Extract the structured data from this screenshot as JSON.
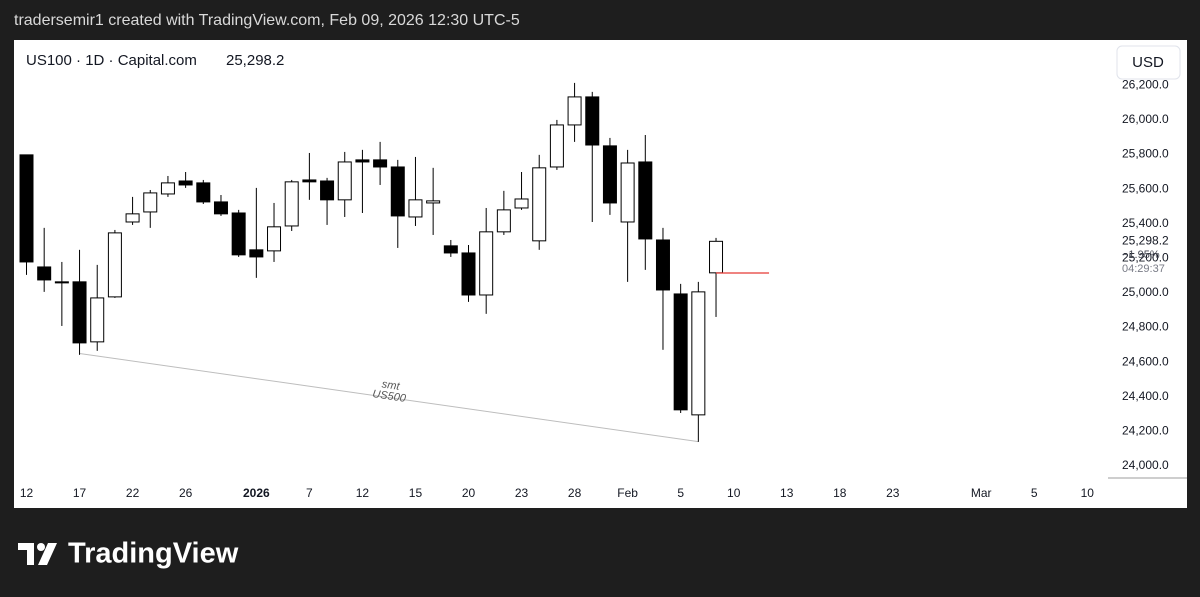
{
  "credit": "tradersemir1 created with TradingView.com, Feb 09, 2026 12:30 UTC-5",
  "brand": "TradingView",
  "chart_data": {
    "type": "candlestick",
    "title": "US100 · 1D · Capital.com",
    "last_price": {
      "value": 25298.2,
      "label": "25,298.2"
    },
    "change_label": "−1.95%",
    "countdown": "04:29:37",
    "currency": "USD",
    "categories": [
      "12",
      null,
      null,
      "17",
      null,
      null,
      "22",
      null,
      null,
      "26",
      null,
      null,
      null,
      "2026",
      null,
      null,
      "7",
      null,
      null,
      "12",
      null,
      null,
      "15",
      null,
      null,
      "20",
      null,
      null,
      "23",
      null,
      null,
      "28",
      null,
      null,
      "Feb",
      null,
      null,
      "5",
      null,
      null,
      "10",
      null,
      null,
      "13",
      null,
      null,
      "18",
      null,
      null,
      "23",
      null,
      null,
      null,
      null,
      "Mar",
      null,
      null,
      "5",
      null,
      null,
      "10"
    ],
    "open": [
      25798,
      25150,
      25064,
      25064,
      24717,
      24977,
      25410,
      25468,
      25572,
      25647,
      25636,
      25526,
      25462,
      25249,
      25243,
      25387,
      25653,
      25647,
      25538,
      25769,
      25769,
      25728,
      25439,
      25520,
      25272,
      25231,
      24988,
      25353,
      25491,
      25301,
      25728,
      25971,
      26133,
      25850,
      25410,
      25757,
      25306,
      24994,
      24295,
      25116,
      null,
      null,
      null,
      null,
      null,
      null,
      null,
      null,
      null,
      null,
      null,
      null,
      null,
      null,
      null,
      null,
      null,
      null,
      null,
      null,
      null
    ],
    "high": [
      25798,
      25376,
      25179,
      25249,
      25162,
      25364,
      25555,
      25595,
      25676,
      25699,
      25653,
      25566,
      25480,
      25607,
      25520,
      25653,
      25809,
      25665,
      25815,
      25827,
      25873,
      25769,
      25786,
      25723,
      25306,
      25277,
      25491,
      25590,
      25699,
      25798,
      26000,
      26214,
      26162,
      25896,
      25827,
      25913,
      25376,
      25052,
      25064,
      25318,
      null,
      null,
      null,
      null,
      null,
      null,
      null,
      null,
      null,
      null,
      null,
      null,
      null,
      null,
      null,
      null,
      null,
      null,
      null,
      null,
      null
    ],
    "low": [
      25104,
      25006,
      24809,
      24642,
      24665,
      24971,
      25393,
      25376,
      25555,
      25607,
      25514,
      25445,
      25208,
      25087,
      25179,
      25358,
      25538,
      25393,
      25439,
      25462,
      25624,
      25260,
      25387,
      25335,
      25208,
      24948,
      24879,
      25335,
      25480,
      25249,
      25711,
      25873,
      25410,
      25451,
      25064,
      25133,
      24671,
      24306,
      24139,
      24861,
      null,
      null,
      null,
      null,
      null,
      null,
      null,
      null,
      null,
      null,
      null,
      null,
      null,
      null,
      null,
      null,
      null,
      null,
      null,
      null,
      null
    ],
    "close": [
      25179,
      25075,
      25058,
      24711,
      24971,
      25347,
      25457,
      25578,
      25636,
      25624,
      25526,
      25457,
      25220,
      25208,
      25382,
      25642,
      25642,
      25538,
      25757,
      25757,
      25728,
      25445,
      25538,
      25532,
      25231,
      24988,
      25353,
      25480,
      25543,
      25723,
      25971,
      26133,
      25855,
      25520,
      25751,
      25312,
      25017,
      24324,
      25006,
      25298.2,
      null,
      null,
      null,
      null,
      null,
      null,
      null,
      null,
      null,
      null,
      null,
      null,
      null,
      null,
      null,
      null,
      null,
      null,
      null,
      null,
      null
    ],
    "up_color": "#ffffff",
    "down_color": "#000000",
    "outline_color": "#000000",
    "ylim": [
      23930,
      26462
    ],
    "yticks": [
      {
        "value": 24000,
        "label": "24,000.0"
      },
      {
        "value": 24200,
        "label": "24,200.0"
      },
      {
        "value": 24400,
        "label": "24,400.0"
      },
      {
        "value": 24600,
        "label": "24,600.0"
      },
      {
        "value": 24800,
        "label": "24,800.0"
      },
      {
        "value": 25000,
        "label": "25,000.0"
      },
      {
        "value": 25200,
        "label": "25,200.0"
      },
      {
        "value": 25400,
        "label": "25,400.0"
      },
      {
        "value": 25600,
        "label": "25,600.0"
      },
      {
        "value": 25800,
        "label": "25,800.0"
      },
      {
        "value": 26000,
        "label": "26,000.0"
      },
      {
        "value": 26200,
        "label": "26,200.0"
      }
    ],
    "price_line": {
      "value": 25115,
      "x": [
        39,
        42
      ],
      "color": "#e53935"
    },
    "trendline": {
      "x": [
        3,
        38
      ],
      "y": [
        24650,
        24140
      ],
      "color": "#bdbdbd",
      "labels": [
        "smt",
        "US500"
      ]
    }
  }
}
